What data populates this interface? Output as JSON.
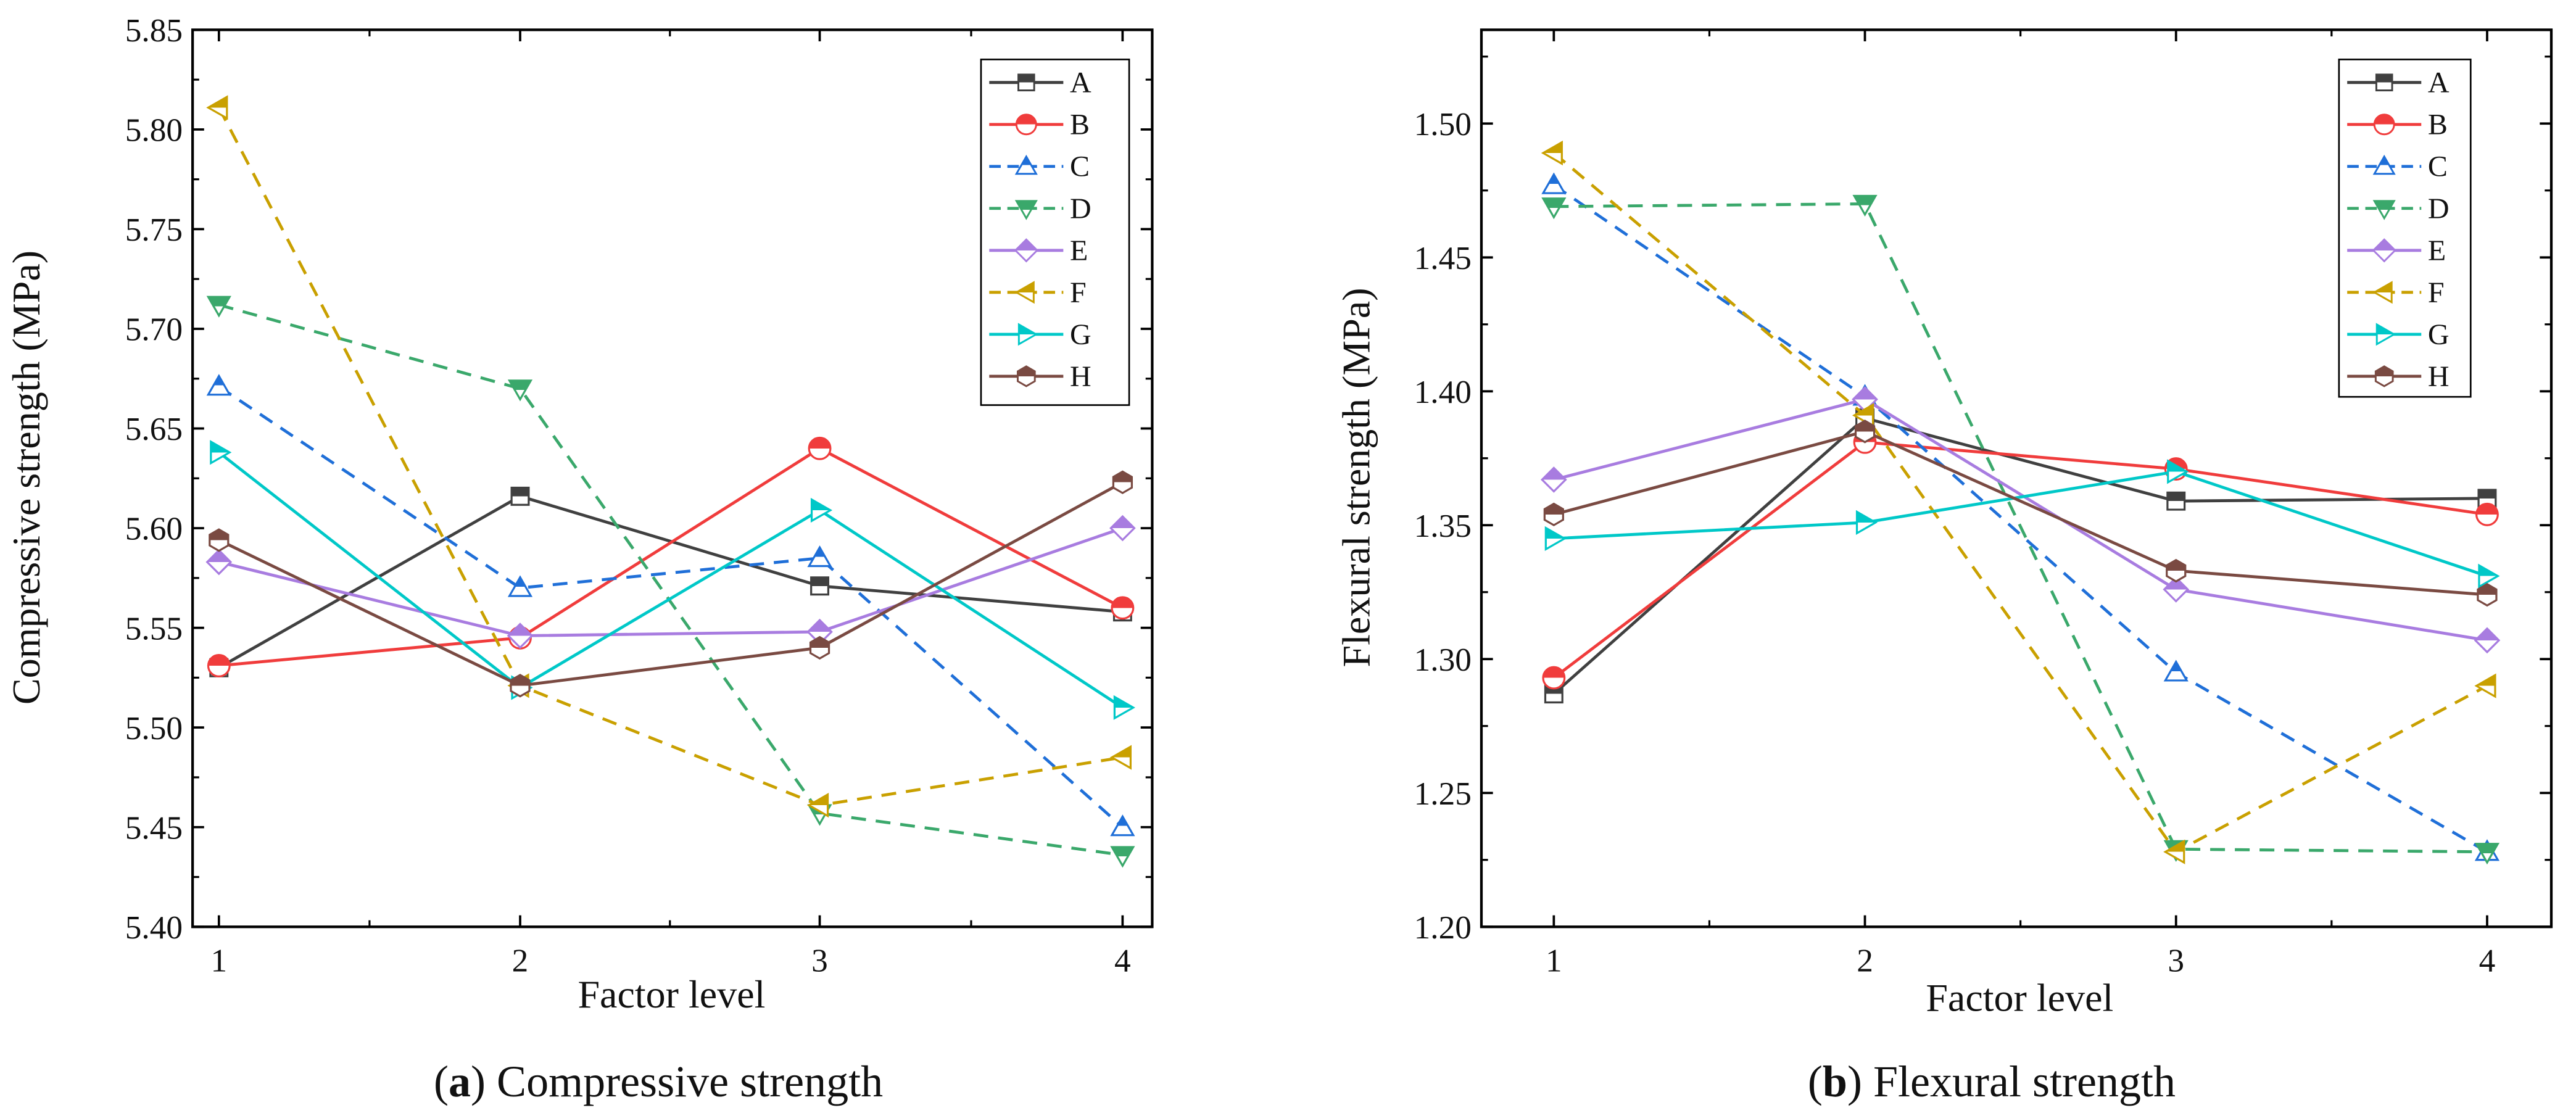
{
  "chart_data": [
    {
      "type": "line",
      "caption_label": "a",
      "caption_text": "Compressive strength",
      "xlabel": "Factor level",
      "ylabel": "Compressive strength (MPa)",
      "x": [
        1,
        2,
        3,
        4
      ],
      "xticks": [
        "1",
        "2",
        "3",
        "4"
      ],
      "ylim": [
        5.4,
        5.85
      ],
      "yticks": [
        "5.40",
        "5.45",
        "5.50",
        "5.55",
        "5.60",
        "5.65",
        "5.70",
        "5.75",
        "5.80",
        "5.85"
      ],
      "legend_position": "top-right",
      "series": [
        {
          "name": "A",
          "values": [
            5.53,
            5.616,
            5.571,
            5.558
          ]
        },
        {
          "name": "B",
          "values": [
            5.531,
            5.545,
            5.64,
            5.56
          ]
        },
        {
          "name": "C",
          "values": [
            5.671,
            5.57,
            5.585,
            5.45
          ]
        },
        {
          "name": "D",
          "values": [
            5.712,
            5.67,
            5.457,
            5.436
          ]
        },
        {
          "name": "E",
          "values": [
            5.583,
            5.546,
            5.548,
            5.6
          ]
        },
        {
          "name": "F",
          "values": [
            5.811,
            5.521,
            5.461,
            5.485
          ]
        },
        {
          "name": "G",
          "values": [
            5.638,
            5.52,
            5.609,
            5.51
          ]
        },
        {
          "name": "H",
          "values": [
            5.594,
            5.521,
            5.54,
            5.623
          ]
        }
      ]
    },
    {
      "type": "line",
      "caption_label": "b",
      "caption_text": "Flexural strength",
      "xlabel": "Factor level",
      "ylabel": "Flexural strength (MPa)",
      "x": [
        1,
        2,
        3,
        4
      ],
      "xticks": [
        "1",
        "2",
        "3",
        "4"
      ],
      "ylim": [
        1.2,
        1.535
      ],
      "yticks": [
        "1.20",
        "1.25",
        "1.30",
        "1.35",
        "1.40",
        "1.45",
        "1.50"
      ],
      "legend_position": "top-right",
      "series": [
        {
          "name": "A",
          "values": [
            1.287,
            1.39,
            1.359,
            1.36
          ]
        },
        {
          "name": "B",
          "values": [
            1.293,
            1.381,
            1.371,
            1.354
          ]
        },
        {
          "name": "C",
          "values": [
            1.477,
            1.398,
            1.295,
            1.228
          ]
        },
        {
          "name": "D",
          "values": [
            1.469,
            1.47,
            1.229,
            1.228
          ]
        },
        {
          "name": "E",
          "values": [
            1.367,
            1.397,
            1.326,
            1.307
          ]
        },
        {
          "name": "F",
          "values": [
            1.489,
            1.391,
            1.228,
            1.29
          ]
        },
        {
          "name": "G",
          "values": [
            1.345,
            1.351,
            1.37,
            1.331
          ]
        },
        {
          "name": "H",
          "values": [
            1.354,
            1.385,
            1.333,
            1.324
          ]
        }
      ]
    }
  ],
  "series_style": {
    "A": {
      "color": "#404040",
      "marker": "square",
      "dashed": false
    },
    "B": {
      "color": "#f03c3c",
      "marker": "circle",
      "dashed": false
    },
    "C": {
      "color": "#1f6fd8",
      "marker": "triangle-up",
      "dashed": true
    },
    "D": {
      "color": "#3aa86b",
      "marker": "triangle-down",
      "dashed": true
    },
    "E": {
      "color": "#a87ce0",
      "marker": "diamond",
      "dashed": false
    },
    "F": {
      "color": "#c9a000",
      "marker": "triangle-left",
      "dashed": true
    },
    "G": {
      "color": "#00c8c8",
      "marker": "triangle-right",
      "dashed": false
    },
    "H": {
      "color": "#7a4a42",
      "marker": "hexagon",
      "dashed": false
    }
  }
}
